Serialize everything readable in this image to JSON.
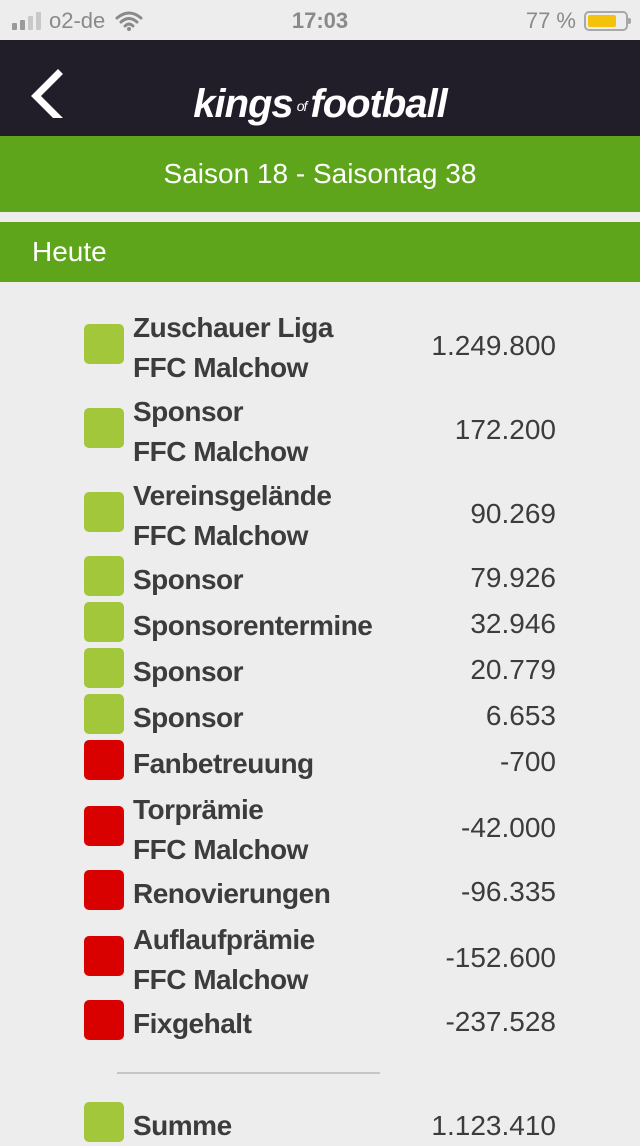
{
  "status_bar": {
    "carrier": "o2-de",
    "time": "17:03",
    "battery": "77 %",
    "battery_level": 0.77,
    "signal_icon": "signal-bars-icon",
    "wifi_icon": "wifi-icon",
    "battery_icon": "battery-icon"
  },
  "navbar": {
    "back_icon": "chevron-left-icon",
    "logo": {
      "part1": "kings",
      "part2": "of",
      "part3": "football"
    }
  },
  "season": "Saison 18 - Saisontag 38",
  "section_title": "Heute",
  "colors": {
    "positive": "#a2c73a",
    "negative": "#d90000",
    "accent": "#5ea51c",
    "navbar": "#221e29"
  },
  "items": [
    {
      "title": "Zuschauer Liga",
      "subtitle": "FFC Malchow",
      "value": "1.249.800",
      "sign": "positive"
    },
    {
      "title": "Sponsor",
      "subtitle": "FFC Malchow",
      "value": "172.200",
      "sign": "positive"
    },
    {
      "title": "Vereinsgelände",
      "subtitle": "FFC Malchow",
      "value": "90.269",
      "sign": "positive"
    },
    {
      "title": "Sponsor",
      "value": "79.926",
      "sign": "positive"
    },
    {
      "title": "Sponsorentermine",
      "value": "32.946",
      "sign": "positive"
    },
    {
      "title": "Sponsor",
      "value": "20.779",
      "sign": "positive"
    },
    {
      "title": "Sponsor",
      "value": "6.653",
      "sign": "positive"
    },
    {
      "title": "Fanbetreuung",
      "value": "-700",
      "sign": "negative"
    },
    {
      "title": "Torprämie",
      "subtitle": "FFC Malchow",
      "value": "-42.000",
      "sign": "negative"
    },
    {
      "title": "Renovierungen",
      "value": "-96.335",
      "sign": "negative"
    },
    {
      "title": "Auflaufprämie",
      "subtitle": "FFC Malchow",
      "value": "-152.600",
      "sign": "negative"
    },
    {
      "title": "Fixgehalt",
      "value": "-237.528",
      "sign": "negative"
    }
  ],
  "summary": {
    "title": "Summe",
    "value": "1.123.410",
    "sign": "positive"
  }
}
